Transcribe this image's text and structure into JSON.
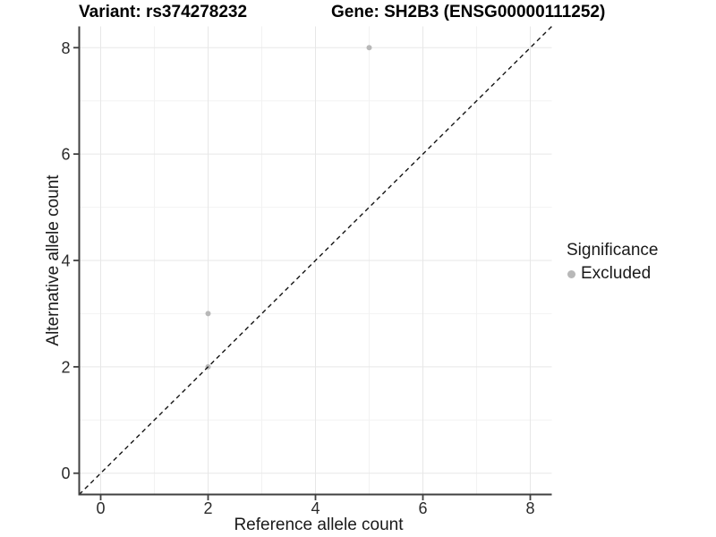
{
  "titles": {
    "variant": "Variant: rs374278232",
    "gene": "Gene: SH2B3 (ENSG00000111252)"
  },
  "legend": {
    "title": "Significance",
    "items": [
      {
        "label": "Excluded",
        "color": "#b8b8b8"
      }
    ]
  },
  "chart_data": {
    "type": "scatter",
    "title": "Variant: rs374278232 / Gene: SH2B3 (ENSG00000111252)",
    "xlabel": "Reference allele count",
    "ylabel": "Alternative allele count",
    "xlim": [
      -0.4,
      8.4
    ],
    "ylim": [
      -0.4,
      8.4
    ],
    "x_ticks": [
      0,
      2,
      4,
      6,
      8
    ],
    "y_ticks": [
      0,
      2,
      4,
      6,
      8
    ],
    "x_minor_ticks": [
      1,
      3,
      5,
      7
    ],
    "y_minor_ticks": [
      1,
      3,
      5,
      7
    ],
    "grid": true,
    "legend_position": "right-middle",
    "series": [
      {
        "name": "Excluded",
        "color": "#b8b8b8",
        "points": [
          {
            "x": 2,
            "y": 2
          },
          {
            "x": 2,
            "y": 3
          },
          {
            "x": 5,
            "y": 8
          }
        ]
      }
    ],
    "reference_line": {
      "type": "identity y=x",
      "from": [
        -0.4,
        -0.4
      ],
      "to": [
        8.4,
        8.4
      ],
      "style": "dashed",
      "color": "#141414"
    }
  },
  "colors": {
    "background": "#ffffff",
    "grid_major": "#e7e7e7",
    "grid_minor": "#f2f2f2",
    "axis_line": "#404040",
    "tick_label": "#2b2b2b",
    "point": "#b8b8b8"
  }
}
